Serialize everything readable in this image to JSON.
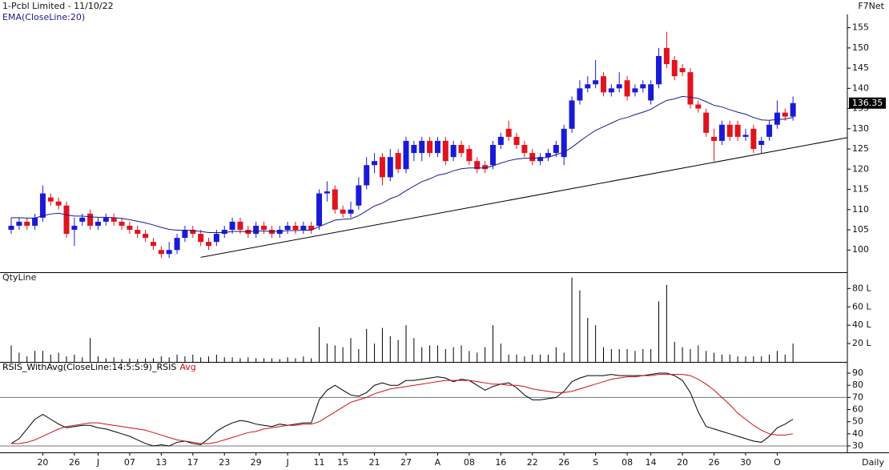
{
  "chart_data": [
    {
      "type": "candlestick",
      "title": "1-Pcbl Limited - 11/10/22",
      "source": "F7Net",
      "categories": [
        null,
        null,
        null,
        null,
        "20",
        null,
        null,
        null,
        "26",
        null,
        null,
        "J",
        null,
        null,
        null,
        "07",
        null,
        null,
        null,
        "13",
        null,
        null,
        null,
        "17",
        null,
        null,
        null,
        "23",
        null,
        null,
        null,
        "29",
        null,
        null,
        null,
        "J",
        null,
        null,
        null,
        "11",
        null,
        null,
        "15",
        null,
        null,
        null,
        "21",
        null,
        null,
        null,
        "27",
        null,
        null,
        null,
        "A",
        null,
        null,
        null,
        "08",
        null,
        null,
        null,
        "16",
        null,
        null,
        null,
        "22",
        null,
        null,
        null,
        "26",
        null,
        null,
        null,
        "S",
        null,
        null,
        null,
        "08",
        null,
        null,
        "14",
        null,
        null,
        null,
        "20",
        null,
        null,
        null,
        "26",
        null,
        null,
        null,
        "30",
        null,
        null,
        null,
        "O",
        null,
        null
      ],
      "open": [
        105,
        106,
        107,
        106,
        108,
        113,
        112,
        111,
        105,
        107,
        109,
        106,
        107,
        108,
        107,
        106,
        105,
        104,
        102,
        100,
        99,
        100,
        103,
        105,
        104,
        102,
        102,
        104,
        105,
        107,
        105,
        104,
        106,
        105,
        104,
        105,
        106,
        105,
        106,
        106,
        114,
        115,
        110,
        109,
        111,
        116,
        121,
        123,
        118,
        124,
        120,
        124,
        124,
        127,
        124,
        127,
        123,
        126,
        125,
        122,
        121,
        121,
        126,
        130,
        128,
        126,
        124,
        122,
        123,
        124,
        123,
        130,
        137,
        140,
        141,
        143,
        139,
        140,
        142,
        139,
        140,
        137,
        141,
        150,
        147,
        145,
        144,
        136,
        134,
        128,
        127,
        131,
        131,
        128,
        130,
        126,
        128,
        131,
        134,
        133
      ],
      "high": [
        108,
        108,
        108,
        109,
        116,
        114,
        113,
        112,
        108,
        109,
        110,
        108,
        109,
        109,
        108,
        107,
        106,
        105,
        103,
        101,
        102,
        104,
        106,
        106,
        105,
        103,
        105,
        106,
        108,
        108,
        106,
        107,
        107,
        106,
        106,
        107,
        107,
        107,
        107,
        115,
        117,
        116,
        111,
        112,
        118,
        123,
        124,
        124,
        125,
        125,
        128,
        127,
        128,
        128,
        128,
        128,
        127,
        127,
        126,
        123,
        122,
        127,
        129,
        132,
        129,
        127,
        125,
        124,
        125,
        127,
        131,
        138,
        142,
        143,
        147,
        144,
        141,
        144,
        143,
        141,
        142,
        142,
        150,
        154,
        148,
        146,
        145,
        137,
        135,
        130,
        132,
        132,
        132,
        130,
        131,
        128,
        132,
        137,
        135,
        138
      ],
      "low": [
        104,
        105,
        105,
        105,
        107,
        111,
        110,
        103,
        101,
        106,
        105,
        105,
        106,
        106,
        105,
        104,
        103,
        102,
        100,
        98,
        98,
        99,
        102,
        103,
        101,
        100,
        101,
        103,
        104,
        104,
        103,
        103,
        104,
        103,
        103,
        104,
        104,
        104,
        104,
        105,
        112,
        109,
        108,
        108,
        110,
        115,
        119,
        116,
        117,
        119,
        119,
        122,
        122,
        123,
        123,
        121,
        122,
        123,
        121,
        119,
        119,
        120,
        125,
        127,
        125,
        123,
        121,
        121,
        122,
        123,
        121,
        129,
        136,
        139,
        140,
        138,
        138,
        139,
        137,
        138,
        139,
        136,
        140,
        145,
        142,
        143,
        135,
        134,
        128,
        122,
        126,
        127,
        127,
        127,
        124,
        124,
        127,
        130,
        132,
        132
      ],
      "close": [
        106,
        107,
        106,
        108,
        114,
        112,
        111,
        104,
        106,
        108,
        106,
        107,
        108,
        107,
        106,
        105,
        104,
        103,
        101,
        99,
        100,
        103,
        105,
        104,
        102,
        101,
        104,
        105,
        107,
        105,
        104,
        106,
        105,
        104,
        105,
        106,
        105,
        106,
        105,
        114,
        114.5,
        110,
        109,
        110,
        116,
        121,
        122,
        118,
        123,
        120,
        127,
        126,
        127,
        124,
        127,
        122,
        126,
        124,
        122,
        120,
        120,
        126,
        128,
        128,
        126,
        124,
        122,
        123,
        124,
        126,
        130,
        137,
        140,
        141,
        142,
        139,
        140,
        141,
        138,
        140,
        141,
        141,
        148,
        146,
        143,
        144,
        136,
        135,
        129,
        127,
        131,
        128,
        128,
        128.5,
        125,
        127,
        131,
        134,
        133,
        136.35
      ],
      "up_color": "#1a1ad6",
      "down_color": "#e0141e",
      "ema": {
        "name": "EMA(CloseLine:20)",
        "color": "#1a1a8c",
        "values": [
          108,
          108,
          107.9,
          107.9,
          108.5,
          108.9,
          109.1,
          108.7,
          108.4,
          108.4,
          108.2,
          108.1,
          108.1,
          108,
          107.8,
          107.5,
          107.1,
          106.7,
          106.2,
          105.6,
          105.1,
          104.9,
          104.9,
          104.8,
          104.6,
          104.3,
          104.3,
          104.3,
          104.6,
          104.6,
          104.5,
          104.7,
          104.7,
          104.6,
          104.6,
          104.8,
          104.8,
          104.9,
          104.9,
          105.8,
          106.6,
          107.4,
          107.6,
          107.7,
          108.5,
          109.7,
          110.9,
          111.6,
          112.7,
          113.4,
          114.7,
          115.8,
          116.9,
          117.6,
          118.5,
          118.9,
          119.6,
          120.1,
          120.3,
          120.3,
          120.3,
          120.8,
          121.5,
          122.1,
          122.5,
          122.7,
          122.7,
          122.8,
          122.9,
          123.6,
          124.2,
          125.4,
          126.9,
          128.3,
          129.6,
          130.5,
          131.4,
          132.3,
          132.8,
          133.5,
          134.1,
          134.8,
          136,
          137,
          137.4,
          138,
          137.8,
          137.5,
          136.7,
          135.8,
          135.4,
          134.7,
          134.1,
          133.6,
          132.8,
          132.2,
          132.1,
          132.3,
          132.4,
          132.8
        ]
      },
      "trendline": {
        "x": [
          24,
          106
        ],
        "y": [
          98.2,
          127.8
        ]
      },
      "ylim": [
        94.5,
        157.5
      ],
      "yticks": [
        100,
        105,
        110,
        115,
        120,
        125,
        130,
        135,
        140,
        145,
        150,
        155
      ]
    },
    {
      "type": "bar",
      "title": "QtyLine",
      "color": "#000000",
      "values": [
        18,
        10,
        6,
        12,
        12,
        8,
        10,
        6,
        8,
        5,
        26,
        6,
        4,
        5,
        3,
        4,
        3,
        4,
        4,
        6,
        5,
        8,
        6,
        8,
        5,
        6,
        8,
        5,
        5,
        4,
        5,
        4,
        4,
        4,
        3,
        5,
        4,
        6,
        4,
        38,
        20,
        18,
        16,
        26,
        14,
        36,
        20,
        37,
        28,
        24,
        40,
        26,
        16,
        18,
        18,
        14,
        16,
        18,
        12,
        10,
        16,
        40,
        20,
        8,
        8,
        6,
        8,
        8,
        8,
        16,
        10,
        92,
        78,
        48,
        40,
        16,
        14,
        14,
        14,
        12,
        14,
        14,
        66,
        84,
        22,
        16,
        14,
        18,
        12,
        10,
        8,
        8,
        6,
        6,
        6,
        6,
        8,
        12,
        8,
        20
      ],
      "ylim": [
        0,
        96
      ],
      "yticks": [
        {
          "value": 20,
          "label": "20 L"
        },
        {
          "value": 40,
          "label": "40 L"
        },
        {
          "value": 60,
          "label": "60 L"
        },
        {
          "value": 80,
          "label": "80 L"
        }
      ]
    },
    {
      "type": "line",
      "x_label": "Daily",
      "series": [
        {
          "name": "RSIS_WithAvg(CloseLine:14:5:S:9)_RSIS",
          "color": "#000000",
          "values": [
            32,
            36,
            44,
            52,
            56,
            52,
            48,
            45,
            46,
            47,
            47,
            45,
            44,
            42,
            40,
            38,
            35,
            32,
            30,
            31,
            30,
            33,
            34,
            32,
            31,
            36,
            42,
            46,
            49,
            51,
            50,
            48,
            47,
            46,
            48,
            47,
            48,
            49,
            49,
            68,
            76,
            80,
            76,
            72,
            71,
            74,
            80,
            82,
            80,
            80,
            84,
            84,
            85,
            86,
            87,
            86,
            83,
            85,
            84,
            80,
            76,
            79,
            81,
            82,
            78,
            72,
            68,
            68,
            69,
            70,
            75,
            83,
            86,
            88,
            88,
            88,
            89,
            88,
            88,
            88,
            88,
            89,
            90,
            90,
            88,
            84,
            74,
            58,
            46,
            44,
            42,
            40,
            38,
            36,
            34,
            33,
            38,
            45,
            48,
            52
          ]
        },
        {
          "name": "Avg",
          "color": "#d01010",
          "values": [
            32,
            32,
            33,
            35,
            38,
            41,
            44,
            46,
            47,
            48,
            49,
            49,
            48,
            47,
            46,
            45,
            44,
            43,
            41,
            39,
            37,
            35,
            34,
            33,
            32,
            32,
            33,
            35,
            37,
            39,
            41,
            42,
            44,
            45,
            46,
            47,
            47,
            48,
            48,
            50,
            54,
            58,
            62,
            66,
            68,
            70,
            73,
            75,
            77,
            78,
            79,
            80,
            81,
            82,
            83,
            84,
            84,
            84,
            84,
            83,
            82,
            81,
            81,
            80,
            80,
            79,
            77,
            76,
            75,
            74,
            74,
            75,
            77,
            79,
            81,
            83,
            85,
            86,
            87,
            87,
            88,
            88,
            89,
            89,
            89,
            89,
            88,
            85,
            81,
            76,
            70,
            64,
            57,
            52,
            47,
            43,
            40,
            39,
            39,
            40
          ]
        }
      ],
      "hlines": [
        70,
        30
      ],
      "ylim": [
        24.7,
        97.3
      ],
      "yticks": [
        30,
        40,
        50,
        60,
        70,
        80,
        90
      ]
    }
  ]
}
